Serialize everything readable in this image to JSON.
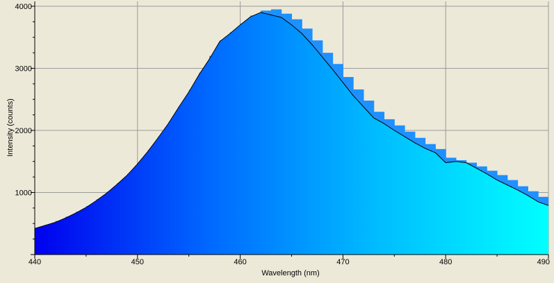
{
  "chart_data": {
    "type": "area",
    "xlabel": "Wavelength (nm)",
    "ylabel": "Intensity (counts)",
    "xlim": [
      440,
      490
    ],
    "ylim": [
      0,
      4000
    ],
    "x_ticks": [
      "440",
      "450",
      "460",
      "470",
      "480",
      "490"
    ],
    "y_ticks": [
      "1000",
      "2000",
      "3000",
      "4000"
    ],
    "grid": true,
    "fill_gradient": [
      "#0000EE",
      "#0066FF",
      "#00BBFF",
      "#00FFFF"
    ],
    "series": [
      {
        "style": "step-fill",
        "color": "#1E90FF",
        "x": [
          440,
          441,
          442,
          443,
          444,
          445,
          446,
          447,
          448,
          449,
          450,
          451,
          452,
          453,
          454,
          455,
          456,
          457,
          458,
          459,
          460,
          461,
          462,
          463,
          464,
          465,
          466,
          467,
          468,
          469,
          470,
          471,
          472,
          473,
          474,
          475,
          476,
          477,
          478,
          479,
          480,
          481,
          482,
          483,
          484,
          485,
          486,
          487,
          488,
          489,
          490
        ],
        "y": [
          430,
          480,
          540,
          610,
          690,
          780,
          890,
          1010,
          1150,
          1300,
          1480,
          1680,
          1900,
          2130,
          2390,
          2650,
          2930,
          3200,
          3450,
          3580,
          3720,
          3850,
          3930,
          3950,
          3880,
          3790,
          3640,
          3450,
          3250,
          3070,
          2860,
          2660,
          2480,
          2300,
          2180,
          2080,
          1980,
          1880,
          1780,
          1700,
          1560,
          1520,
          1480,
          1420,
          1350,
          1280,
          1200,
          1100,
          1020,
          930,
          870
        ]
      },
      {
        "style": "line",
        "color": "#000000",
        "x": [
          440,
          441,
          442,
          443,
          444,
          445,
          446,
          447,
          448,
          449,
          450,
          451,
          452,
          453,
          454,
          455,
          456,
          457,
          458,
          459,
          460,
          461,
          462,
          463,
          464,
          465,
          466,
          467,
          468,
          469,
          470,
          471,
          472,
          473,
          474,
          475,
          476,
          477,
          478,
          479,
          480,
          481,
          482,
          483,
          484,
          485,
          486,
          487,
          488,
          489,
          490
        ],
        "y": [
          420,
          470,
          520,
          590,
          670,
          760,
          870,
          990,
          1130,
          1280,
          1460,
          1660,
          1880,
          2110,
          2370,
          2620,
          2900,
          3150,
          3430,
          3560,
          3700,
          3830,
          3900,
          3860,
          3820,
          3700,
          3560,
          3380,
          3180,
          2980,
          2770,
          2560,
          2380,
          2200,
          2110,
          2000,
          1900,
          1800,
          1710,
          1640,
          1480,
          1500,
          1480,
          1390,
          1300,
          1200,
          1120,
          1040,
          950,
          850,
          790
        ]
      }
    ]
  }
}
